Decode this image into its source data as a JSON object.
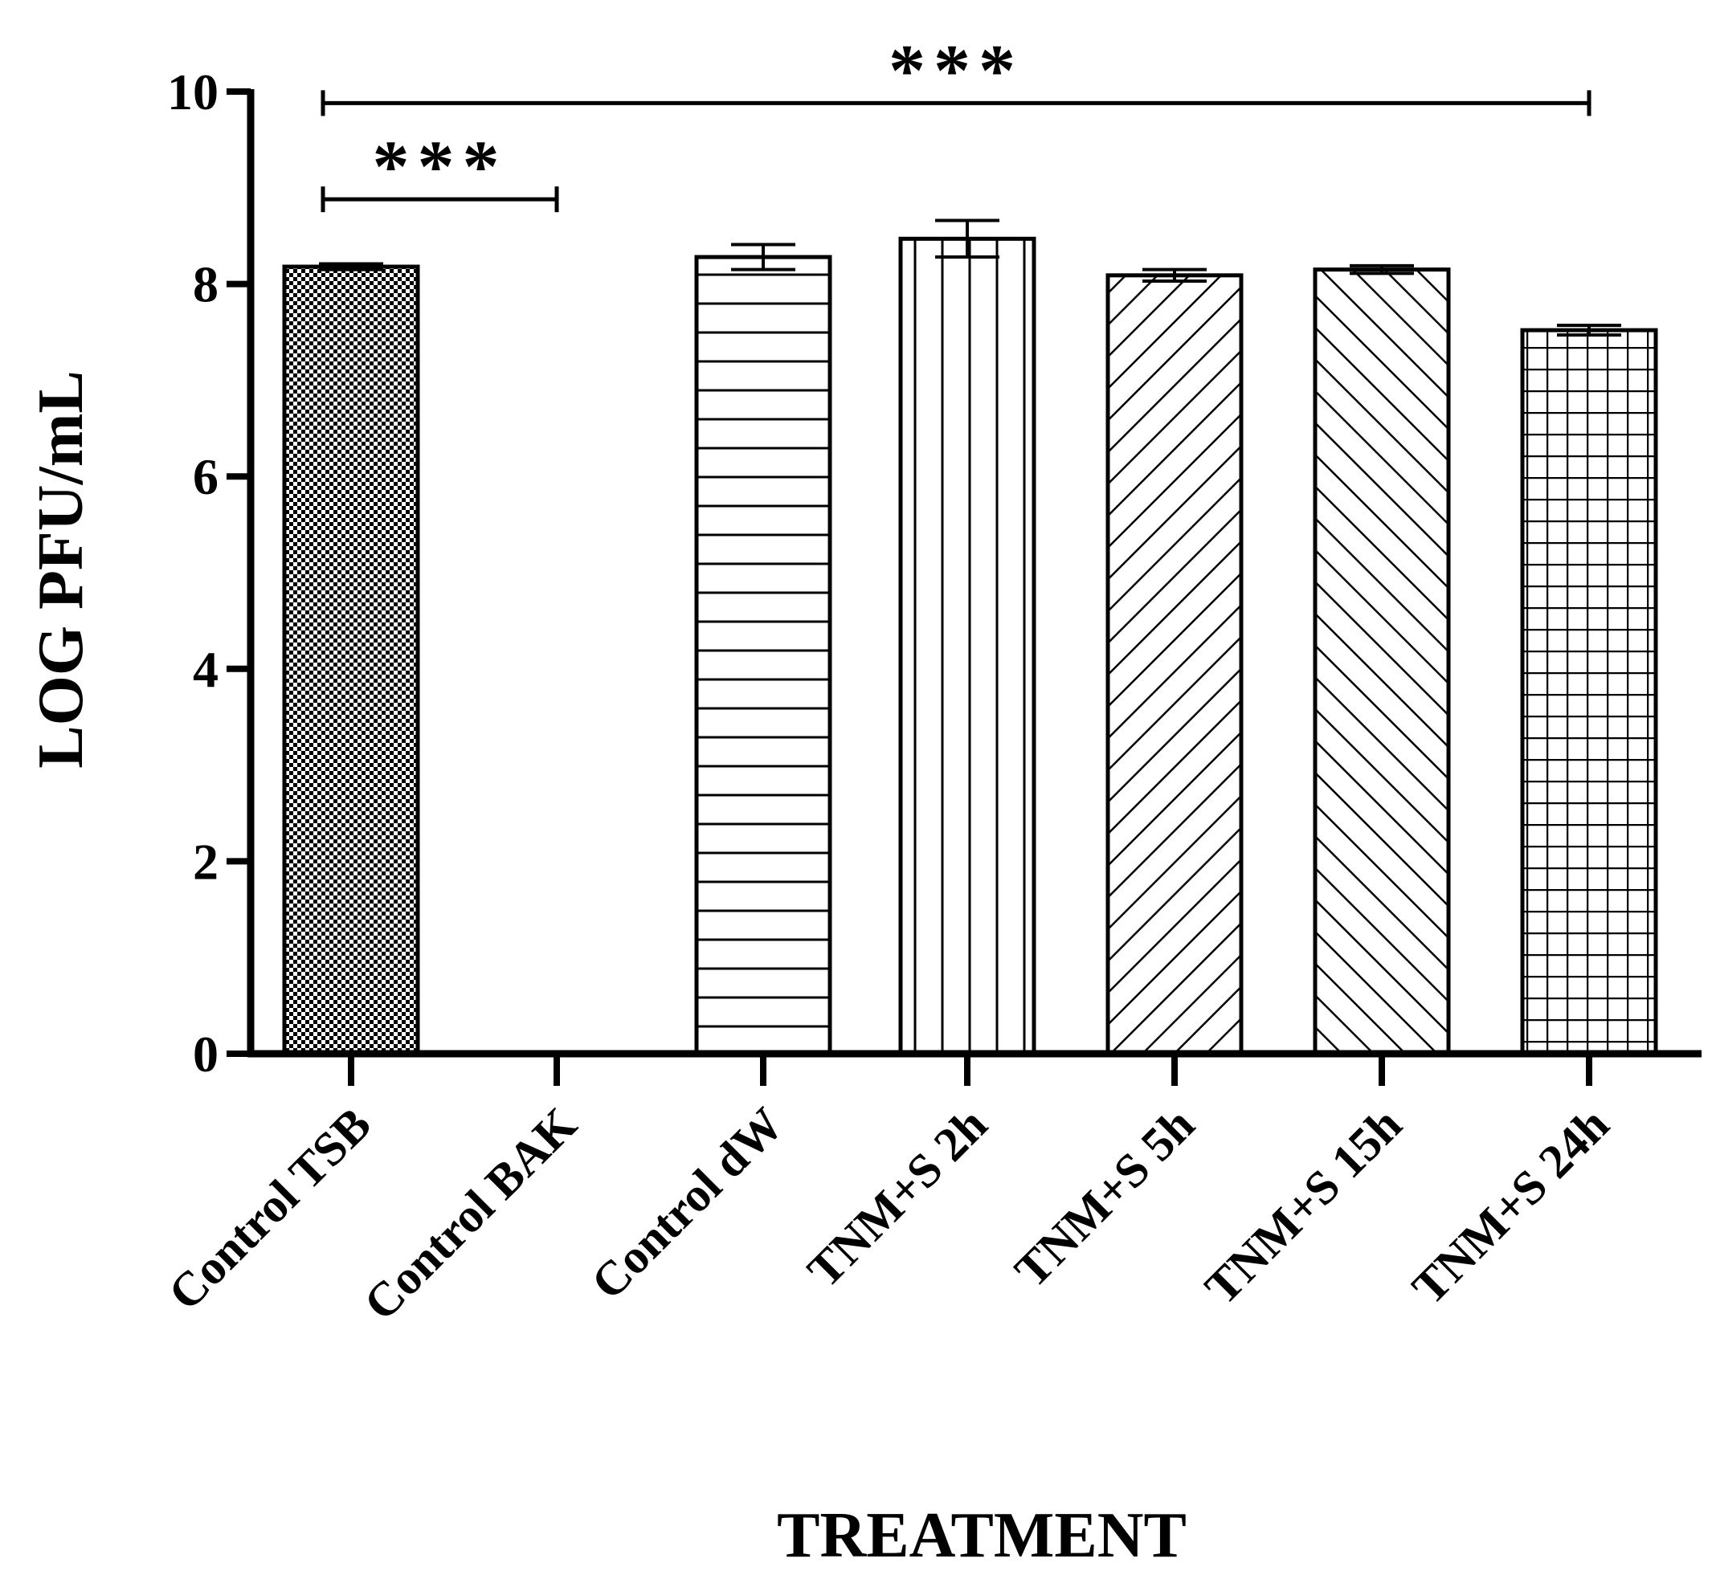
{
  "chart_data": {
    "type": "bar",
    "title": "",
    "xlabel": "TREATMENT",
    "ylabel": "LOG PFU/mL",
    "ylim": [
      0,
      10
    ],
    "yticks": [
      0,
      2,
      4,
      6,
      8,
      10
    ],
    "grid": false,
    "categories": [
      "Control TSB",
      "Control BAK",
      "Control dW",
      "TNM+S 2h",
      "TNM+S 5h",
      "TNM+S 15h",
      "TNM+S 24h"
    ],
    "values": [
      8.18,
      0,
      8.28,
      8.47,
      8.09,
      8.15,
      7.52
    ],
    "errors": [
      0.03,
      0,
      0.13,
      0.19,
      0.06,
      0.04,
      0.05
    ],
    "patterns": [
      "checker",
      "none",
      "horizontal",
      "vertical",
      "diag-up",
      "diag-down",
      "grid"
    ],
    "significance": [
      {
        "from": 0,
        "to": 1,
        "y": 8.88,
        "label": "***"
      },
      {
        "from": 0,
        "to": 6,
        "y": 9.88,
        "label": "***"
      }
    ]
  }
}
